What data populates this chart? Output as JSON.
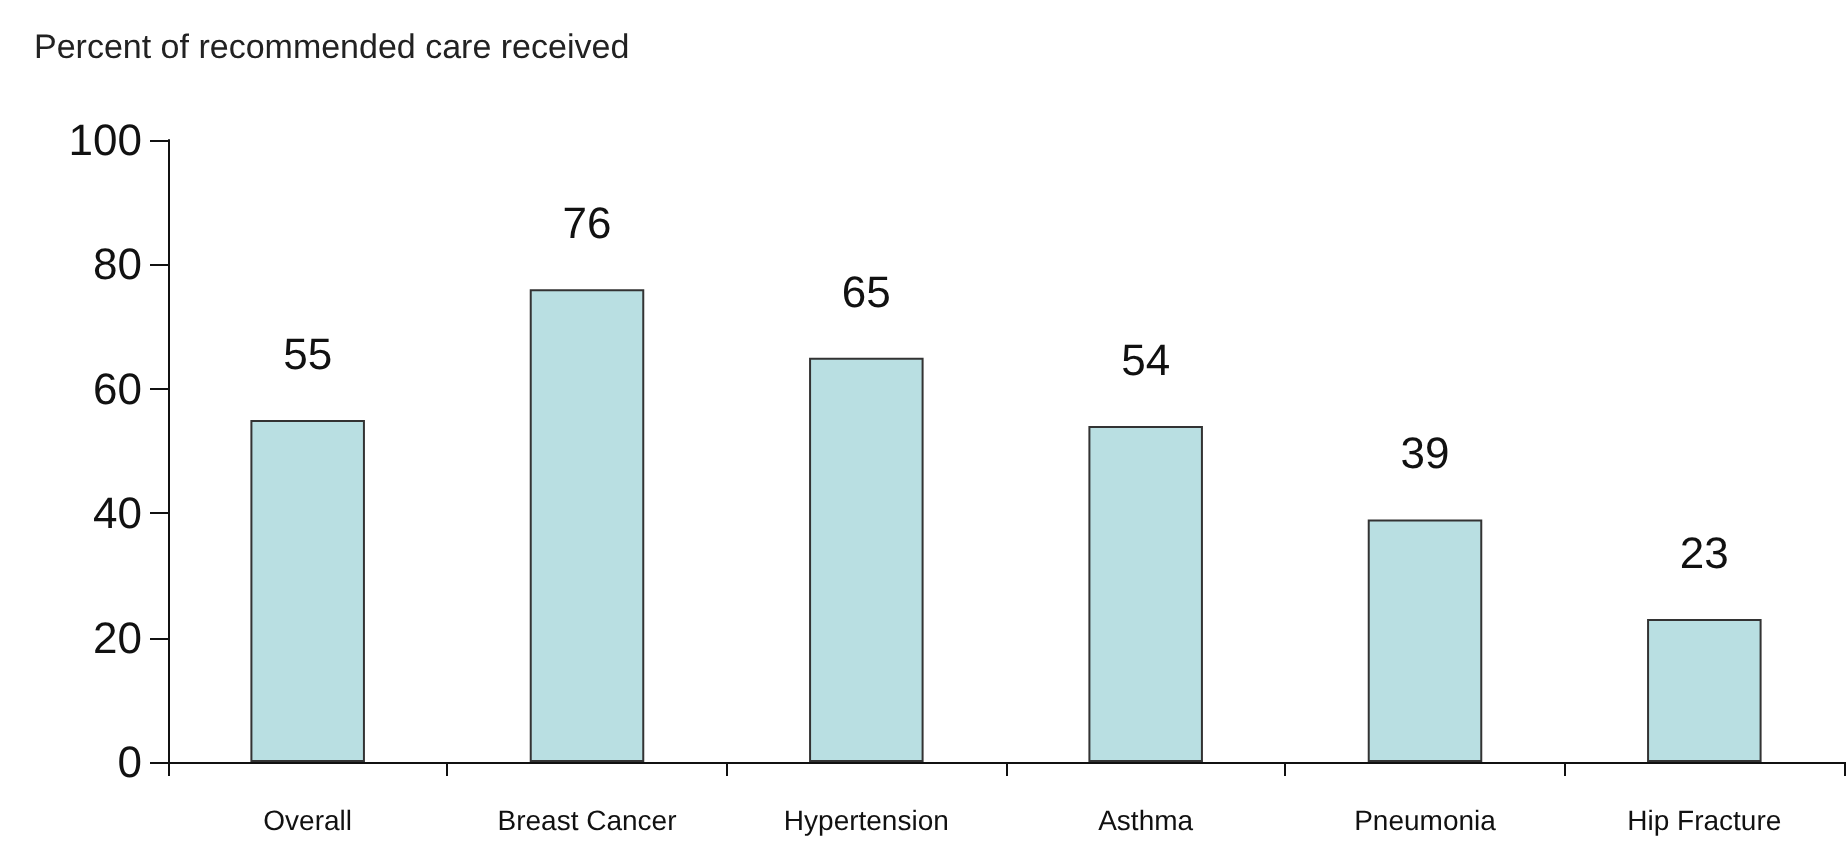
{
  "chart_data": {
    "type": "bar",
    "ylabel": "Percent of recommended care received",
    "categories": [
      "Overall",
      "Breast Cancer",
      "Hypertension",
      "Asthma",
      "Pneumonia",
      "Hip Fracture"
    ],
    "values": [
      55,
      76,
      65,
      54,
      39,
      23
    ],
    "color": "#b9dfe2",
    "ylim": [
      0,
      100
    ],
    "yticks": [
      0,
      20,
      40,
      60,
      80,
      100
    ],
    "grid": false,
    "data_labels": true
  }
}
